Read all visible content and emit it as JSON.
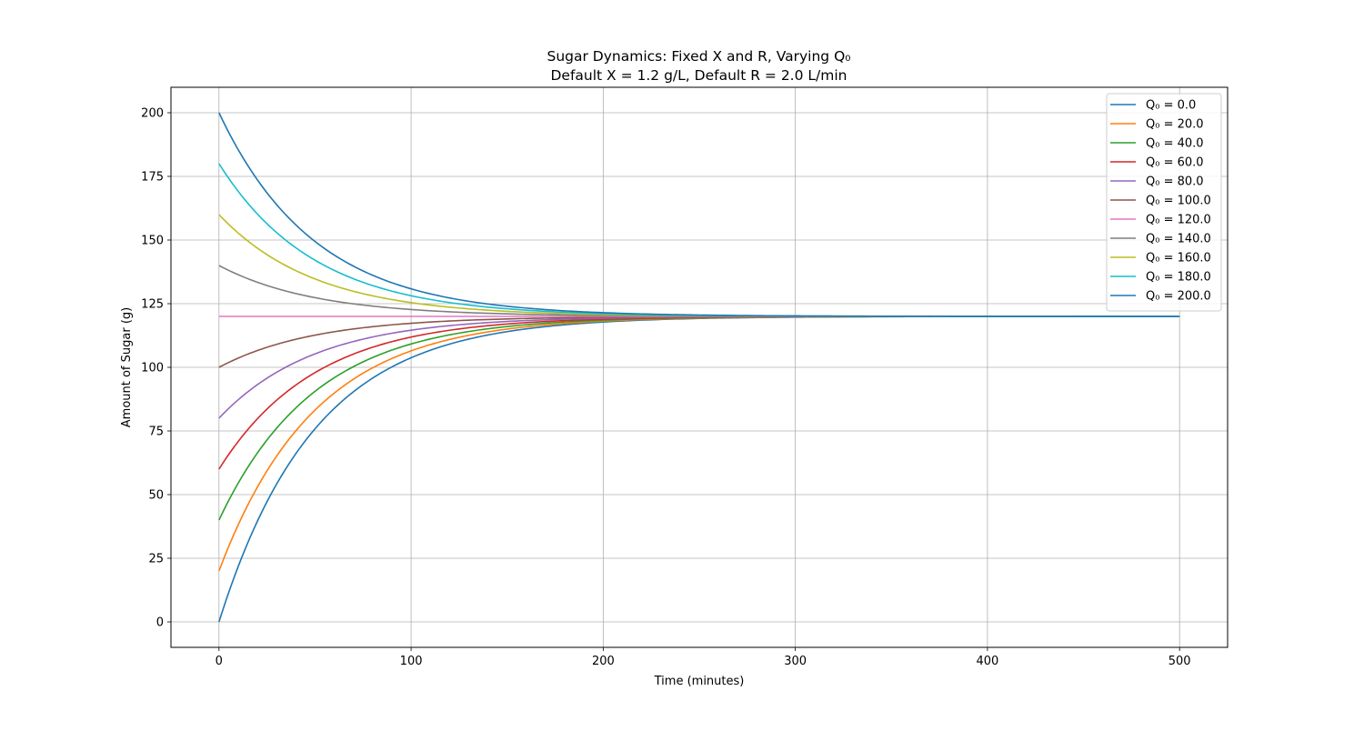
{
  "chart_data": {
    "type": "line",
    "title": "Sugar Dynamics: Fixed X and R, Varying Q₀",
    "subtitle": "Default X = 1.2 g/L, Default R = 2.0 L/min",
    "xlabel": "Time (minutes)",
    "ylabel": "Amount of Sugar (g)",
    "xlim": [
      -25,
      525
    ],
    "ylim": [
      -10,
      210
    ],
    "x_ticks": [
      0,
      100,
      200,
      300,
      400,
      500
    ],
    "y_ticks": [
      0,
      25,
      50,
      75,
      100,
      125,
      150,
      175,
      200
    ],
    "grid": true,
    "legend_position": "top-right",
    "x_range": [
      0,
      500
    ],
    "model": {
      "equilibrium": 120,
      "rate_per_minute": 0.02
    },
    "series": [
      {
        "name": "Q₀ =  0.0",
        "q0": 0,
        "color": "#1f77b4"
      },
      {
        "name": "Q₀ = 20.0",
        "q0": 20,
        "color": "#ff7f0e"
      },
      {
        "name": "Q₀ = 40.0",
        "q0": 40,
        "color": "#2ca02c"
      },
      {
        "name": "Q₀ = 60.0",
        "q0": 60,
        "color": "#d62728"
      },
      {
        "name": "Q₀ = 80.0",
        "q0": 80,
        "color": "#9467bd"
      },
      {
        "name": "Q₀ = 100.0",
        "q0": 100,
        "color": "#8c564b"
      },
      {
        "name": "Q₀ = 120.0",
        "q0": 120,
        "color": "#e377c2"
      },
      {
        "name": "Q₀ = 140.0",
        "q0": 140,
        "color": "#7f7f7f"
      },
      {
        "name": "Q₀ = 160.0",
        "q0": 160,
        "color": "#bcbd22"
      },
      {
        "name": "Q₀ = 180.0",
        "q0": 180,
        "color": "#17becf"
      },
      {
        "name": "Q₀ = 200.0",
        "q0": 200,
        "color": "#1f77b4"
      }
    ]
  }
}
